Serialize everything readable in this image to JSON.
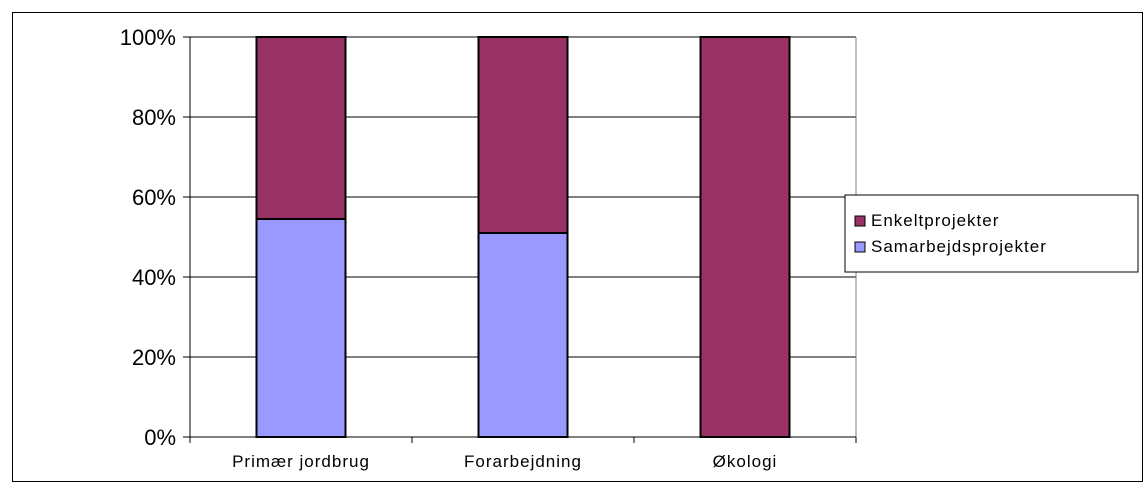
{
  "chart_data": {
    "type": "bar",
    "stacked": true,
    "normalized": true,
    "title": "",
    "xlabel": "",
    "ylabel": "",
    "ylim": [
      0,
      100
    ],
    "y_ticks": [
      "0%",
      "20%",
      "40%",
      "60%",
      "80%",
      "100%"
    ],
    "grid": true,
    "legend_position": "right",
    "categories": [
      "Primær jordbrug",
      "Forarbejdning",
      "Økologi"
    ],
    "series": [
      {
        "name": "Samarbejdsprojekter",
        "color": "#9999ff",
        "values": [
          54.5,
          51,
          0
        ]
      },
      {
        "name": "Enkeltprojekter",
        "color": "#993366",
        "values": [
          45.5,
          49,
          100
        ]
      }
    ],
    "legend": [
      "Enkeltprojekter",
      "Samarbejdsprojekter"
    ]
  }
}
